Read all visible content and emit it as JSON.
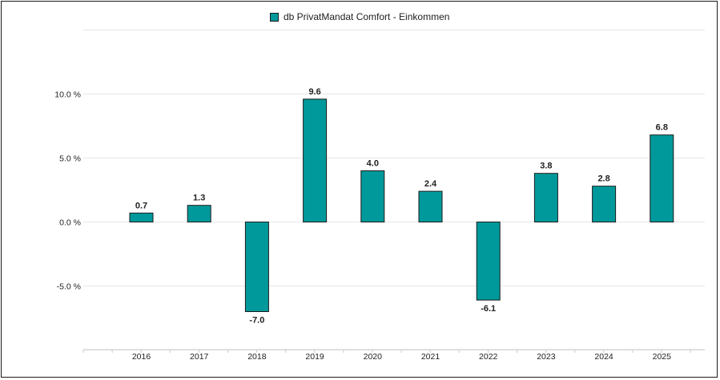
{
  "legend": {
    "label": "db PrivatMandat Comfort - Einkommen",
    "color": "#00999b"
  },
  "chart_data": {
    "type": "bar",
    "categories": [
      "2016",
      "2017",
      "2018",
      "2019",
      "2020",
      "2021",
      "2022",
      "2023",
      "2024",
      "2025"
    ],
    "series": [
      {
        "name": "db PrivatMandat Comfort - Einkommen",
        "values": [
          0.7,
          1.3,
          -7.0,
          9.6,
          4.0,
          2.4,
          -6.1,
          3.8,
          2.8,
          6.8
        ],
        "data_labels": [
          "0.7",
          "1.3",
          "-7.0",
          "9.6",
          "4.0",
          "2.4",
          "-6.1",
          "3.8",
          "2.8",
          "6.8"
        ]
      }
    ],
    "y_ticks": [
      {
        "value": 10,
        "label": "10.0 %"
      },
      {
        "value": 5,
        "label": "5.0 %"
      },
      {
        "value": 0,
        "label": "0.0 %"
      },
      {
        "value": -5,
        "label": "-5.0 %"
      }
    ],
    "ylim": [
      -10,
      15
    ],
    "grid": true,
    "legend_position": "top-center",
    "bar_color": "#00999b"
  }
}
